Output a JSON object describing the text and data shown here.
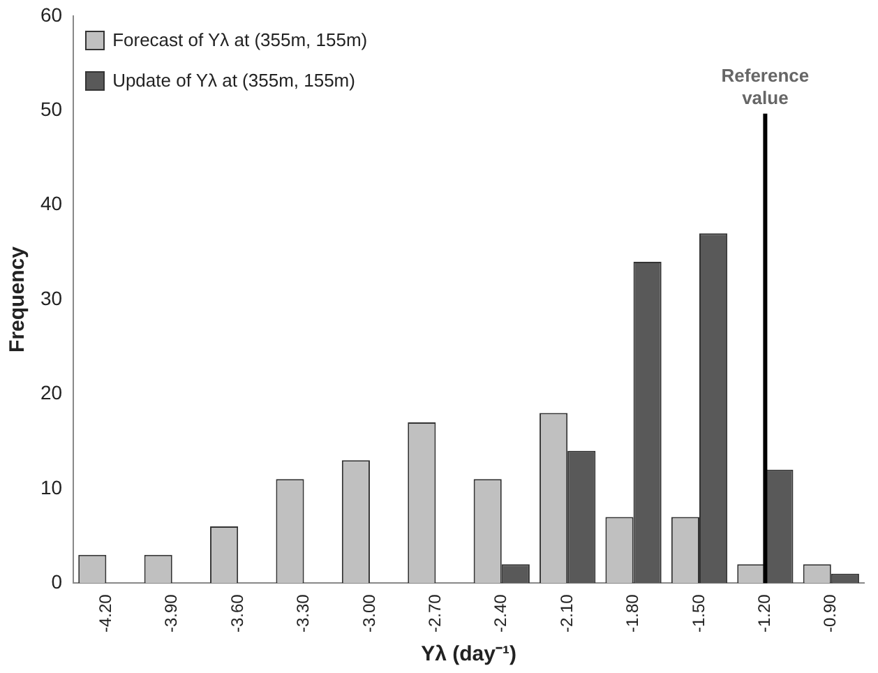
{
  "chart_data": {
    "type": "bar",
    "xlabel": "Yλ (day⁻¹)",
    "ylabel": "Frequency",
    "categories": [
      "-4.20",
      "-3.90",
      "-3.60",
      "-3.30",
      "-3.00",
      "-2.70",
      "-2.40",
      "-2.10",
      "-1.80",
      "-1.50",
      "-1.20",
      "-0.90"
    ],
    "series": [
      {
        "name": "Forecast of Yλ at (355m, 155m)",
        "color": "#c0c0c0",
        "values": [
          3,
          3,
          6,
          11,
          13,
          17,
          11,
          18,
          7,
          7,
          2,
          2
        ]
      },
      {
        "name": "Update of Yλ at (355m, 155m)",
        "color": "#595959",
        "values": [
          0,
          0,
          0,
          0,
          0,
          0,
          2,
          14,
          34,
          37,
          12,
          1
        ]
      }
    ],
    "ylim": [
      0,
      60
    ],
    "yticks": [
      0,
      10,
      20,
      30,
      40,
      50,
      60
    ],
    "grid": false,
    "legend": "top left",
    "ref_lines": [
      {
        "axis": "x",
        "value": "-1.20",
        "label": "Reference value",
        "color": "#000000"
      }
    ]
  }
}
